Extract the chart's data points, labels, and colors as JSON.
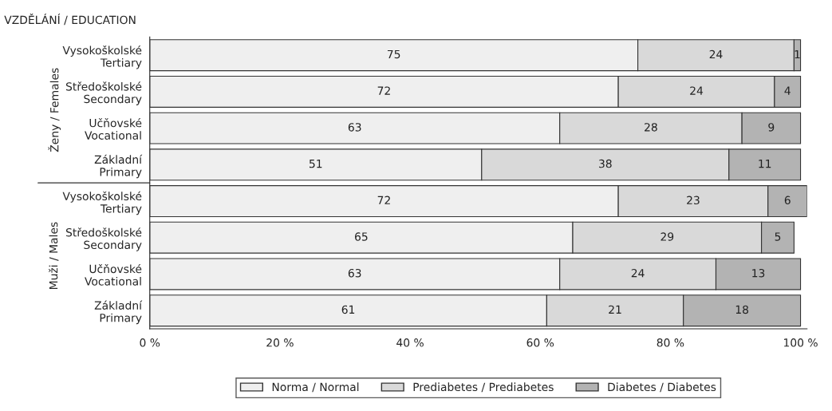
{
  "chart_data": {
    "type": "bar",
    "orientation": "horizontal",
    "stacked": true,
    "title": "VZDĚLÁNÍ / EDUCATION",
    "categories": [
      "Vysokoškolské\nTertiary",
      "Středoškolské\nSecondary",
      "Učňovské\nVocational",
      "Základní\nPrimary",
      "Vysokoškolské\nTertiary",
      "Středoškolské\nSecondary",
      "Učňovské\nVocational",
      "Základní\nPrimary"
    ],
    "series": [
      {
        "name": "Norma / Normal",
        "color": "#efefef",
        "values": [
          75,
          72,
          63,
          51,
          72,
          65,
          63,
          61
        ]
      },
      {
        "name": "Prediabetes / Prediabetes",
        "color": "#d9d9d9",
        "values": [
          24,
          24,
          28,
          38,
          23,
          29,
          24,
          21
        ]
      },
      {
        "name": "Diabetes / Diabetes",
        "color": "#b3b3b3",
        "values": [
          1,
          4,
          9,
          11,
          6,
          5,
          13,
          18
        ]
      }
    ],
    "xlim": [
      0,
      101
    ],
    "xticks": [
      {
        "value": 0,
        "label": "0 %"
      },
      {
        "value": 20,
        "label": "20 %"
      },
      {
        "value": 40,
        "label": "40 %"
      },
      {
        "value": 60,
        "label": "60 %"
      },
      {
        "value": 80,
        "label": "80 %"
      },
      {
        "value": 100,
        "label": "100 %"
      }
    ],
    "data_labels": true,
    "grid": false,
    "legend": "bottom",
    "annotations": [
      "Ženy / Females",
      "Muži / Males"
    ]
  }
}
